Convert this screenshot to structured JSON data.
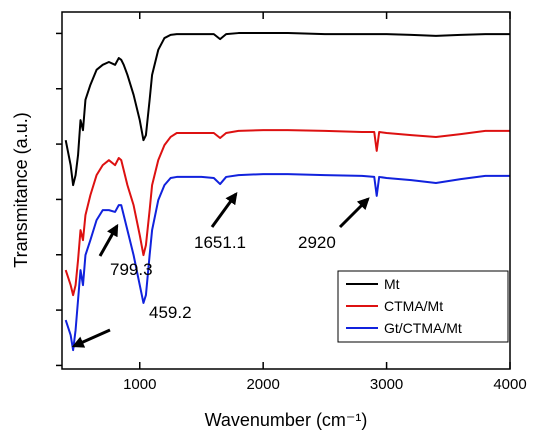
{
  "chart_data": {
    "type": "line",
    "xlabel": "Wavenumber (cm⁻¹)",
    "ylabel": "Transmitance (a.u.)",
    "xlim": [
      370,
      4000
    ],
    "xticks": [
      1000,
      2000,
      3000,
      4000
    ],
    "ylim": [
      0,
      100
    ],
    "yticks": [
      1,
      16.5,
      32,
      47.5,
      63,
      78.5,
      94
    ],
    "show_ytick_labels": false,
    "legend_position": "lower right",
    "x": [
      400,
      440,
      460,
      480,
      500,
      520,
      540,
      560,
      600,
      650,
      700,
      750,
      800,
      830,
      850,
      870,
      900,
      950,
      1000,
      1030,
      1050,
      1080,
      1100,
      1150,
      1200,
      1250,
      1300,
      1400,
      1500,
      1600,
      1651,
      1700,
      1800,
      2000,
      2200,
      2500,
      2800,
      2900,
      2920,
      2940,
      3000,
      3200,
      3400,
      3600,
      3800,
      4000
    ],
    "series": [
      {
        "name": "Mt",
        "color": "#000000",
        "values": [
          64.1,
          57.1,
          51.5,
          54.3,
          59.9,
          69.7,
          66.9,
          75.4,
          79.6,
          83.8,
          85.2,
          86.0,
          85.2,
          87.1,
          86.6,
          85.2,
          82.4,
          76.8,
          69.7,
          64.1,
          65.5,
          75.4,
          82.4,
          89.4,
          92.7,
          93.6,
          93.8,
          93.8,
          93.8,
          93.8,
          92.4,
          93.8,
          94.1,
          94.1,
          94.1,
          93.8,
          93.8,
          93.8,
          93.8,
          93.8,
          93.8,
          93.6,
          93.3,
          93.6,
          93.8,
          93.8
        ]
      },
      {
        "name": "CTMA/Mt",
        "color": "#dd1111",
        "values": [
          27.7,
          23.5,
          20.7,
          23.5,
          30.5,
          38.9,
          36.1,
          43.1,
          48.7,
          54.3,
          57.1,
          58.5,
          57.1,
          59.1,
          58.5,
          55.7,
          51.5,
          45.9,
          37.5,
          31.9,
          34.7,
          44.5,
          51.5,
          58.5,
          62.7,
          65.0,
          66.1,
          66.1,
          66.1,
          66.1,
          64.7,
          66.1,
          66.7,
          66.9,
          66.9,
          66.7,
          66.4,
          66.4,
          61.1,
          66.4,
          66.1,
          65.5,
          65.0,
          65.8,
          66.7,
          66.7
        ]
      },
      {
        "name": "Gt/CTMA/Mt",
        "color": "#1122dd",
        "values": [
          13.7,
          9.5,
          5.3,
          10.9,
          19.3,
          27.7,
          23.5,
          31.9,
          36.1,
          41.7,
          44.5,
          44.5,
          44.0,
          45.9,
          45.9,
          43.1,
          38.9,
          31.9,
          23.5,
          18.5,
          20.7,
          31.9,
          38.9,
          47.3,
          51.5,
          53.5,
          53.8,
          53.8,
          53.8,
          53.5,
          51.8,
          53.8,
          54.3,
          54.6,
          54.6,
          54.3,
          54.1,
          53.8,
          48.5,
          53.8,
          53.5,
          52.9,
          52.1,
          53.2,
          54.1,
          54.1
        ]
      }
    ],
    "annotations": [
      "799.3",
      "459.2",
      "1651.1",
      "2920"
    ]
  }
}
